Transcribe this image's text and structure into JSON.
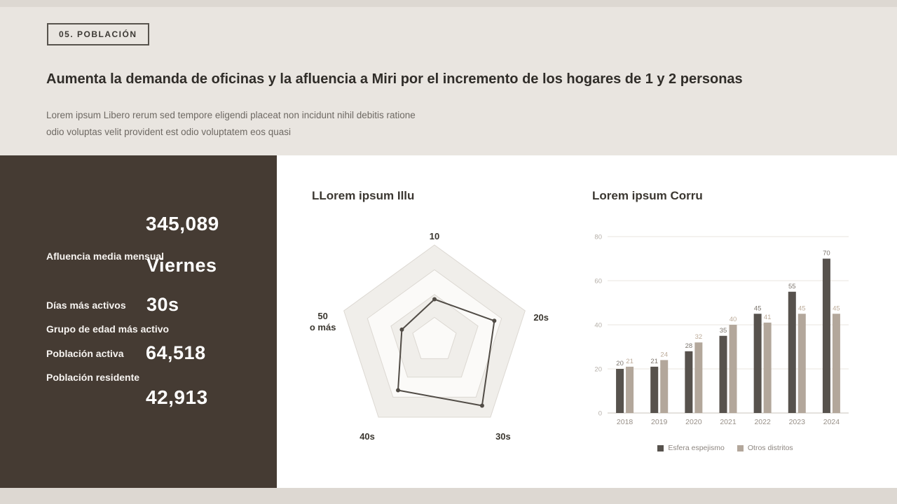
{
  "colors": {
    "background": "#ddd8d2",
    "header_bg": "#e9e5e0",
    "panel_dark": "#453b33",
    "panel_light": "#ffffff",
    "radar_line": "#514c46",
    "bar_dark": "#57524d",
    "bar_taupe": "#b3a79b"
  },
  "header": {
    "tag": "05. POBLACIÓN",
    "title": "Aumenta la demanda de oficinas y la afluencia a Miri por el incremento de los hogares de 1 y 2 personas",
    "subtitle_line1": "Lorem ipsum Libero rerum sed tempore eligendi placeat non incidunt nihil debitis ratione",
    "subtitle_line2": "odio voluptas velit provident est odio voluptatem eos quasi"
  },
  "stats": [
    {
      "value": "345,089",
      "label": "Afluencia media mensual"
    },
    {
      "value": "Viernes",
      "label": "Días más activos"
    },
    {
      "value": "30s",
      "label": "Grupo de edad más activo"
    },
    {
      "value": "64,518",
      "label": "Población activa"
    },
    {
      "value": "42,913",
      "label": "Población residente"
    }
  ],
  "chart_data": [
    {
      "type": "radar",
      "title": "LLorem ipsum Illu",
      "axes": [
        "10",
        "20s",
        "30s",
        "40s",
        "50\no más"
      ],
      "values": [
        43,
        66,
        85,
        65,
        36
      ],
      "max": 100,
      "rings": [
        1,
        0.74,
        0.48,
        0.24
      ],
      "line_color": "#514c46",
      "grid": true,
      "legend_position": "none"
    },
    {
      "type": "bar",
      "title": "Lorem ipsum Corru",
      "categories": [
        "2018",
        "2019",
        "2020",
        "2021",
        "2022",
        "2023",
        "2024"
      ],
      "series": [
        {
          "name": "Esfera espejismo",
          "color": "#57524d",
          "label_color": "#7c756d",
          "values": [
            20,
            21,
            28,
            35,
            45,
            55,
            70
          ]
        },
        {
          "name": "Otros distritos",
          "color": "#b3a79b",
          "label_color": "#bcab99",
          "values": [
            21,
            24,
            32,
            40,
            41,
            45,
            45
          ]
        }
      ],
      "xlabel": "",
      "ylabel": "",
      "ylim": [
        0,
        80
      ],
      "yticks": [
        0,
        20,
        40,
        60,
        80
      ],
      "grid": true,
      "legend_position": "bottom"
    }
  ]
}
